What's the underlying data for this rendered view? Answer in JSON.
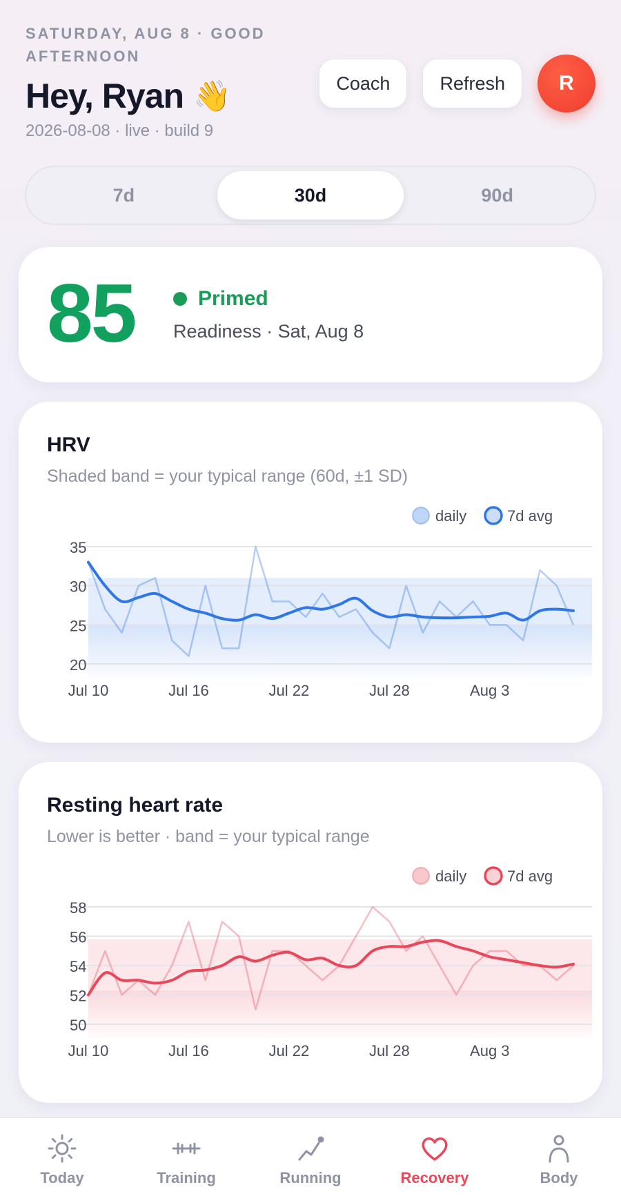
{
  "header": {
    "date_line": "SATURDAY, AUG 8 · GOOD AFTERNOON",
    "greeting": "Hey, Ryan",
    "greeting_emoji": "👋",
    "build_line": "2026-08-08 · live · build 9",
    "coach_label": "Coach",
    "refresh_label": "Refresh",
    "avatar_initial": "R"
  },
  "range_selector": {
    "options": [
      "7d",
      "30d",
      "90d"
    ],
    "selected": "30d"
  },
  "readiness": {
    "score": "85",
    "status": "Primed",
    "subtitle": "Readiness · Sat, Aug 8",
    "color": "#12a05e"
  },
  "chart_data": [
    {
      "type": "line",
      "title": "HRV",
      "subtitle": "Shaded band = your typical range (60d, ±1 SD)",
      "legend": [
        "daily",
        "7d avg"
      ],
      "legend_position": "top-right",
      "x_ticks": [
        "Jul 10",
        "Jul 16",
        "Jul 22",
        "Jul 28",
        "Aug 3"
      ],
      "y_ticks": [
        35,
        30,
        25,
        20
      ],
      "ylim": [
        20,
        35
      ],
      "band": [
        25,
        31
      ],
      "color": "#2f76e6",
      "series": [
        {
          "name": "daily",
          "values": [
            33,
            27,
            24,
            30,
            31,
            23,
            21,
            30,
            22,
            22,
            35,
            28,
            28,
            26,
            29,
            26,
            27,
            24,
            22,
            30,
            24,
            28,
            26,
            28,
            25,
            25,
            23,
            32,
            30,
            25
          ]
        },
        {
          "name": "7d avg",
          "values": [
            33,
            30,
            28,
            28.5,
            29,
            28,
            27,
            26.5,
            25.8,
            25.6,
            26.3,
            25.8,
            26.5,
            27.2,
            27.0,
            27.6,
            28.4,
            26.8,
            26.0,
            26.3,
            26.0,
            25.9,
            25.9,
            26.0,
            26.1,
            26.5,
            25.6,
            26.8,
            27.0,
            26.8
          ]
        }
      ]
    },
    {
      "type": "line",
      "title": "Resting heart rate",
      "subtitle": "Lower is better · band = your typical range",
      "legend": [
        "daily",
        "7d avg"
      ],
      "legend_position": "top-right",
      "x_ticks": [
        "Jul 10",
        "Jul 16",
        "Jul 22",
        "Jul 28",
        "Aug 3"
      ],
      "y_ticks": [
        58,
        56,
        54,
        52,
        50
      ],
      "ylim": [
        50,
        58
      ],
      "band": [
        52.3,
        55.8
      ],
      "color": "#e8485a",
      "series": [
        {
          "name": "daily",
          "values": [
            52,
            55,
            52,
            53,
            52,
            54,
            57,
            53,
            57,
            56,
            51,
            55,
            55,
            54,
            53,
            54,
            56,
            58,
            57,
            55,
            56,
            54,
            52,
            54,
            55,
            55,
            54,
            54,
            53,
            54
          ]
        },
        {
          "name": "7d avg",
          "values": [
            52,
            53.5,
            53,
            53,
            52.8,
            53,
            53.6,
            53.7,
            54.0,
            54.6,
            54.3,
            54.7,
            54.9,
            54.4,
            54.5,
            54.0,
            54.0,
            55.0,
            55.3,
            55.3,
            55.6,
            55.7,
            55.3,
            55.0,
            54.6,
            54.4,
            54.2,
            54.0,
            53.9,
            54.1
          ]
        }
      ]
    }
  ],
  "nav": {
    "items": [
      {
        "label": "Today",
        "icon": "sun-icon"
      },
      {
        "label": "Training",
        "icon": "dumbbell-icon"
      },
      {
        "label": "Running",
        "icon": "running-trend-icon"
      },
      {
        "label": "Recovery",
        "icon": "heart-icon"
      },
      {
        "label": "Body",
        "icon": "person-icon"
      }
    ],
    "active": "Recovery",
    "active_color": "#e8485a"
  }
}
